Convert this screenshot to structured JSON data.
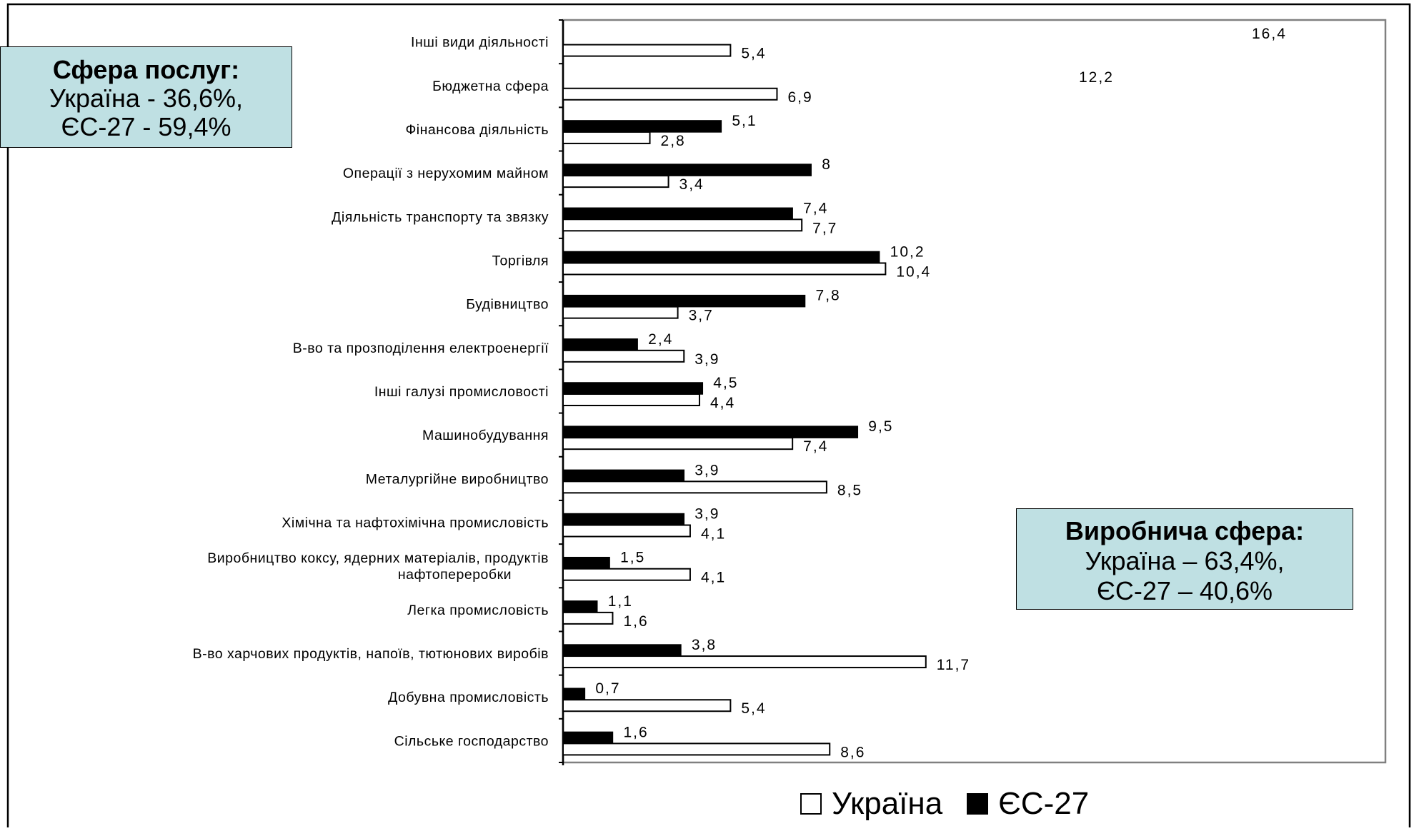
{
  "chart_data": {
    "type": "bar",
    "orientation": "horizontal",
    "categories": [
      "Інші види діяльності",
      "Бюджетна сфера",
      "Фінансова діяльність",
      "Операції з нерухомим майном",
      "Діяльність транспорту та звязку",
      "Торгівля",
      "Будівництво",
      "В-во та прозподілення електроенергії",
      "Інші галузі промисловості",
      "Машинобудування",
      "Металургійне виробництво",
      "Хімічна та нафтохімічна промисловість",
      "Виробництво коксу, ядерних матеріалів, продуктів нафтопереробки",
      "Легка промисловість",
      "В-во харчових продуктів, напоїв, тютюнових виробів",
      "Добувна промисловість",
      "Сільське господарство"
    ],
    "category_lines": [
      [
        "Інші види діяльності"
      ],
      [
        "Бюджетна сфера"
      ],
      [
        "Фінансова діяльність"
      ],
      [
        "Операції з нерухомим майном"
      ],
      [
        "Діяльність транспорту та звязку"
      ],
      [
        "Торгівля"
      ],
      [
        "Будівництво"
      ],
      [
        "В-во та прозподілення електроенергії"
      ],
      [
        "Інші галузі промисловості"
      ],
      [
        "Машинобудування"
      ],
      [
        "Металургійне виробництво"
      ],
      [
        "Хімічна та нафтохімічна промисловість"
      ],
      [
        "Виробництво коксу, ядерних матеріалів, продуктів",
        "нафтопереробки"
      ],
      [
        "Легка промисловість"
      ],
      [
        "В-во харчових продуктів, напоїв, тютюнових виробів"
      ],
      [
        "Добувна промисловість"
      ],
      [
        "Сільське господарство"
      ]
    ],
    "series": [
      {
        "name": "Україна",
        "color": "#ffffff",
        "values": [
          5.4,
          6.9,
          2.8,
          3.4,
          7.7,
          10.4,
          3.7,
          3.9,
          4.4,
          7.4,
          8.5,
          4.1,
          4.1,
          1.6,
          11.7,
          5.4,
          8.6
        ],
        "labels": [
          "5,4",
          "6,9",
          "2,8",
          "3,4",
          "7,7",
          "10,4",
          "3,7",
          "3,9",
          "4,4",
          "7,4",
          "8,5",
          "4,1",
          "4,1",
          "1,6",
          "11,7",
          "5,4",
          "8,6"
        ]
      },
      {
        "name": "ЄС-27",
        "color": "#000000",
        "values": [
          16.4,
          12.2,
          5.1,
          8.0,
          7.4,
          10.2,
          7.8,
          2.4,
          4.5,
          9.5,
          3.9,
          3.9,
          1.5,
          1.1,
          3.8,
          0.7,
          1.6
        ],
        "labels": [
          "16,4",
          "12,2",
          "5,1",
          "8",
          "7,4",
          "10,2",
          "7,8",
          "2,4",
          "4,5",
          "9,5",
          "3,9",
          "3,9",
          "1,5",
          "1,1",
          "3,8",
          "0,7",
          "1,6"
        ],
        "bars_hidden": [
          true,
          true,
          false,
          false,
          false,
          false,
          false,
          false,
          false,
          false,
          false,
          false,
          false,
          false,
          false,
          false,
          false
        ]
      }
    ],
    "xlim": [
      0,
      20
    ],
    "grid": false,
    "legend_position": "bottom-center"
  },
  "callouts": {
    "services": {
      "title": "Сфера послуг:",
      "line1": "Україна - 36,6%,",
      "line2": "ЄС-27 - 59,4%"
    },
    "production": {
      "title": "Виробнича сфера:",
      "line1": "Україна – 63,4%,",
      "line2": "ЄС-27 – 40,6%"
    }
  },
  "legend": {
    "ukraine": "Україна",
    "eu": "ЄС-27"
  }
}
